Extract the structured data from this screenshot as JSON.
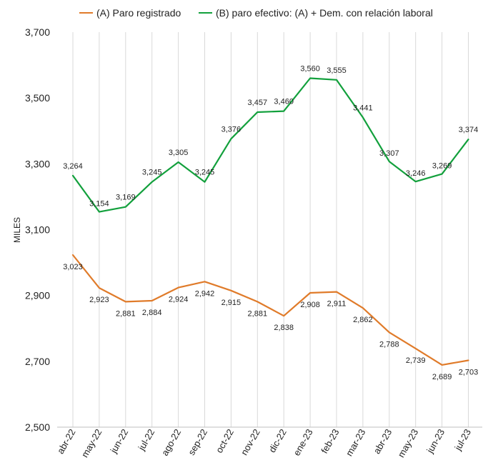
{
  "chart_data": {
    "type": "line",
    "title": "",
    "xlabel": "",
    "ylabel": "MILES",
    "ylim": [
      2500,
      3700
    ],
    "yticks": [
      2500,
      2700,
      2900,
      3100,
      3300,
      3500,
      3700
    ],
    "ytick_labels": [
      "2,500",
      "2,700",
      "2,900",
      "3,100",
      "3,300",
      "3,500",
      "3,700"
    ],
    "categories": [
      "abr-22",
      "may-22",
      "jun-22",
      "jul-22",
      "ago-22",
      "sep-22",
      "oct-22",
      "nov-22",
      "dic-22",
      "ene-23",
      "feb-23",
      "mar-23",
      "abr-23",
      "may-23",
      "jun-23",
      "jul-23"
    ],
    "grid": {
      "vertical": true,
      "horizontal": false
    },
    "legend": "top-center",
    "series": [
      {
        "name": "(A) Paro registrado",
        "color": "#E07B2A",
        "values": [
          3023,
          2923,
          2881,
          2884,
          2924,
          2942,
          2915,
          2881,
          2838,
          2908,
          2911,
          2862,
          2788,
          2739,
          2689,
          2703
        ],
        "labels": [
          "3,023",
          "2,923",
          "2,881",
          "2,884",
          "2,924",
          "2,942",
          "2,915",
          "2,881",
          "2,838",
          "2,908",
          "2,911",
          "2,862",
          "2,788",
          "2,739",
          "2,689",
          "2,703"
        ]
      },
      {
        "name": "(B) paro efectivo: (A) + Dem. con relación laboral",
        "color": "#12A03C",
        "values": [
          3264,
          3154,
          3169,
          3245,
          3305,
          3245,
          3376,
          3457,
          3460,
          3560,
          3555,
          3441,
          3307,
          3246,
          3269,
          3374
        ],
        "labels": [
          "3,264",
          "3,154",
          "3,169",
          "3,245",
          "3,305",
          "3,245",
          "3,376",
          "3,457",
          "3,460",
          "3,560",
          "3,555",
          "3,441",
          "3,307",
          "3,246",
          "3,269",
          "3,374"
        ]
      }
    ]
  }
}
